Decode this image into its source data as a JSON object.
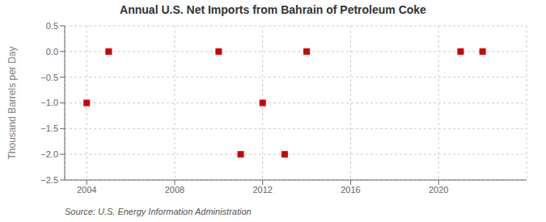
{
  "chart_data": {
    "type": "scatter",
    "title": "Annual U.S. Net Imports from Bahrain of Petroleum Coke",
    "y_label": "Thousand Barrels per Day",
    "annotations": [
      "Source: U.S. Energy Information Administration"
    ],
    "x": [
      2004,
      2005,
      2010,
      2011,
      2012,
      2013,
      2014,
      2021,
      2022
    ],
    "values": [
      -1.0,
      0.0,
      0.0,
      -2.0,
      -1.0,
      -2.0,
      0.0,
      0.0,
      0.0
    ],
    "color": "#cc0000",
    "marker": "square",
    "xlim": [
      2003,
      2024
    ],
    "xticks": [
      2004,
      2008,
      2012,
      2016,
      2020
    ],
    "ylim": [
      -2.5,
      0.5
    ],
    "yticks": [
      0.5,
      {
        "value": 0.0,
        "label": "0.0"
      },
      {
        "value": -0.5,
        "label": "−0.5"
      },
      {
        "value": -1.0,
        "label": "−1.0"
      },
      {
        "value": -1.5,
        "label": "−1.5"
      },
      {
        "value": -2.0,
        "label": "−2.0"
      },
      {
        "value": -2.5,
        "label": "−2.5"
      }
    ],
    "grid": true
  }
}
